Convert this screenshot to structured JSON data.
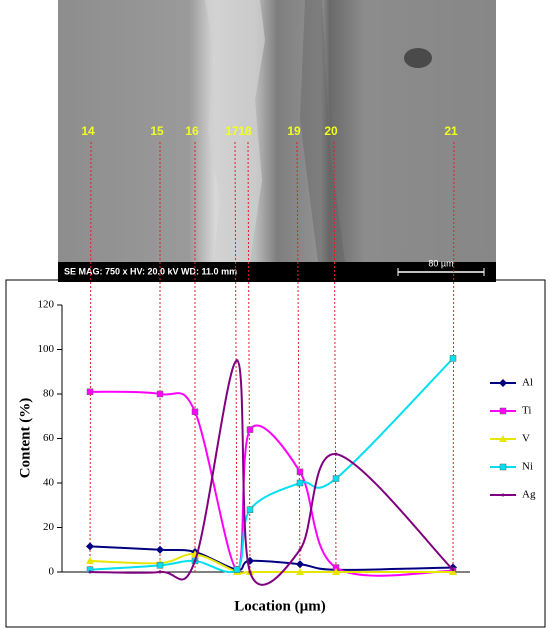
{
  "sem": {
    "info": "SE  MAG: 750 x  HV: 20.0 kV  WD: 11.0 mm",
    "scale": "80 µm"
  },
  "chart_data": {
    "type": "line",
    "categories": [
      "14",
      "15",
      "16",
      "17",
      "18",
      "19",
      "20",
      "21"
    ],
    "xlabel": "Location (µm)",
    "ylabel": "Content (%)",
    "ylim": [
      0,
      120
    ],
    "yticks": [
      0,
      20,
      40,
      60,
      80,
      100,
      120
    ],
    "legend": "right",
    "series": [
      {
        "name": "Al",
        "color": "#000080",
        "marker": "diamond",
        "values": [
          11.5,
          10,
          9,
          1,
          5,
          3.5,
          1,
          2
        ]
      },
      {
        "name": "Ti",
        "color": "#ff00ff",
        "marker": "square",
        "values": [
          81,
          80,
          72,
          1,
          64,
          45,
          2,
          0.5
        ]
      },
      {
        "name": "V",
        "color": "#e6e600",
        "marker": "triangle",
        "values": [
          5,
          4,
          8,
          0,
          0,
          0,
          0,
          0
        ]
      },
      {
        "name": "Ni",
        "color": "#00e0f0",
        "marker": "square",
        "values": [
          1,
          3,
          5,
          1,
          28,
          40,
          42,
          96
        ]
      },
      {
        "name": "Ag",
        "color": "#800080",
        "marker": "none",
        "values": [
          0,
          0,
          5,
          95,
          0,
          10,
          53,
          1
        ]
      }
    ]
  }
}
